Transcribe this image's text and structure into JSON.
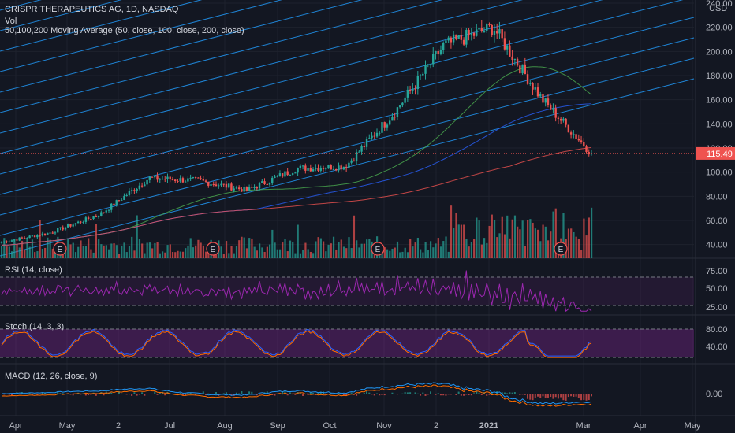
{
  "header": {
    "title": "CRISPR THERAPEUTICS AG, 1D, NASDAQ",
    "vol_label": "Vol",
    "ma_label": "50,100,200 Moving Average (50, close, 100, close, 200, close)",
    "currency": "USD"
  },
  "panes": {
    "rsi_label": "RSI (14, close)",
    "stoch_label": "Stoch (14, 3, 3)",
    "macd_label": "MACD (12, 26, close, 9)"
  },
  "colors": {
    "background": "#131722",
    "up": "#26a69a",
    "down": "#ef5350",
    "channel_line": "#2196f3",
    "ma50": "#4caf50",
    "ma100": "#2962ff",
    "ma200": "#ef5350",
    "rsi": "#9c27b0",
    "stoch_k": "#2962ff",
    "stoch_d": "#ff6d00",
    "macd": "#2196f3",
    "signal": "#ff6d00",
    "price_badge": "#ef5350"
  },
  "price_axis": {
    "ticks": [
      "240.00",
      "220.00",
      "200.00",
      "180.00",
      "160.00",
      "140.00",
      "120.00",
      "100.00",
      "80.00",
      "60.00",
      "40.00"
    ],
    "last_price": "115.49"
  },
  "rsi_axis": {
    "ticks": [
      "75.00",
      "50.00",
      "25.00"
    ]
  },
  "stoch_axis": {
    "ticks": [
      "80.00",
      "40.00"
    ]
  },
  "macd_axis": {
    "ticks": [
      "0.00"
    ]
  },
  "time_axis": {
    "labels": [
      "Apr",
      "May",
      "2",
      "Jul",
      "Aug",
      "Sep",
      "Oct",
      "Nov",
      "2",
      "2021",
      "Mar",
      "Apr",
      "May"
    ],
    "bold_label": "2021"
  },
  "earnings_marker": "E",
  "chart_data": {
    "type": "candlestick",
    "symbol": "CRISPR THERAPEUTICS AG",
    "interval": "1D",
    "exchange": "NASDAQ",
    "price_range": [
      30,
      240
    ],
    "key_prices": [
      {
        "date": "Apr 2020",
        "close": 42
      },
      {
        "date": "May 2020",
        "close": 50
      },
      {
        "date": "Jun 2020",
        "close": 65
      },
      {
        "date": "Jul 2020",
        "close": 95
      },
      {
        "date": "Aug 2020",
        "close": 93
      },
      {
        "date": "Sep 2020",
        "close": 85
      },
      {
        "date": "Oct 2020",
        "close": 103
      },
      {
        "date": "Nov 2020",
        "close": 105
      },
      {
        "date": "Dec 2020",
        "close": 150
      },
      {
        "date": "Jan 2021",
        "close": 205
      },
      {
        "date": "Feb 2021",
        "close": 160
      },
      {
        "date": "Mar 2021",
        "close": 115.49
      }
    ],
    "peak": 220,
    "last_close": 115.49,
    "earnings_months": [
      "May",
      "Aug",
      "Nov",
      "Feb"
    ],
    "rsi_levels": [
      70,
      30
    ],
    "stoch_levels": [
      80,
      20
    ]
  }
}
